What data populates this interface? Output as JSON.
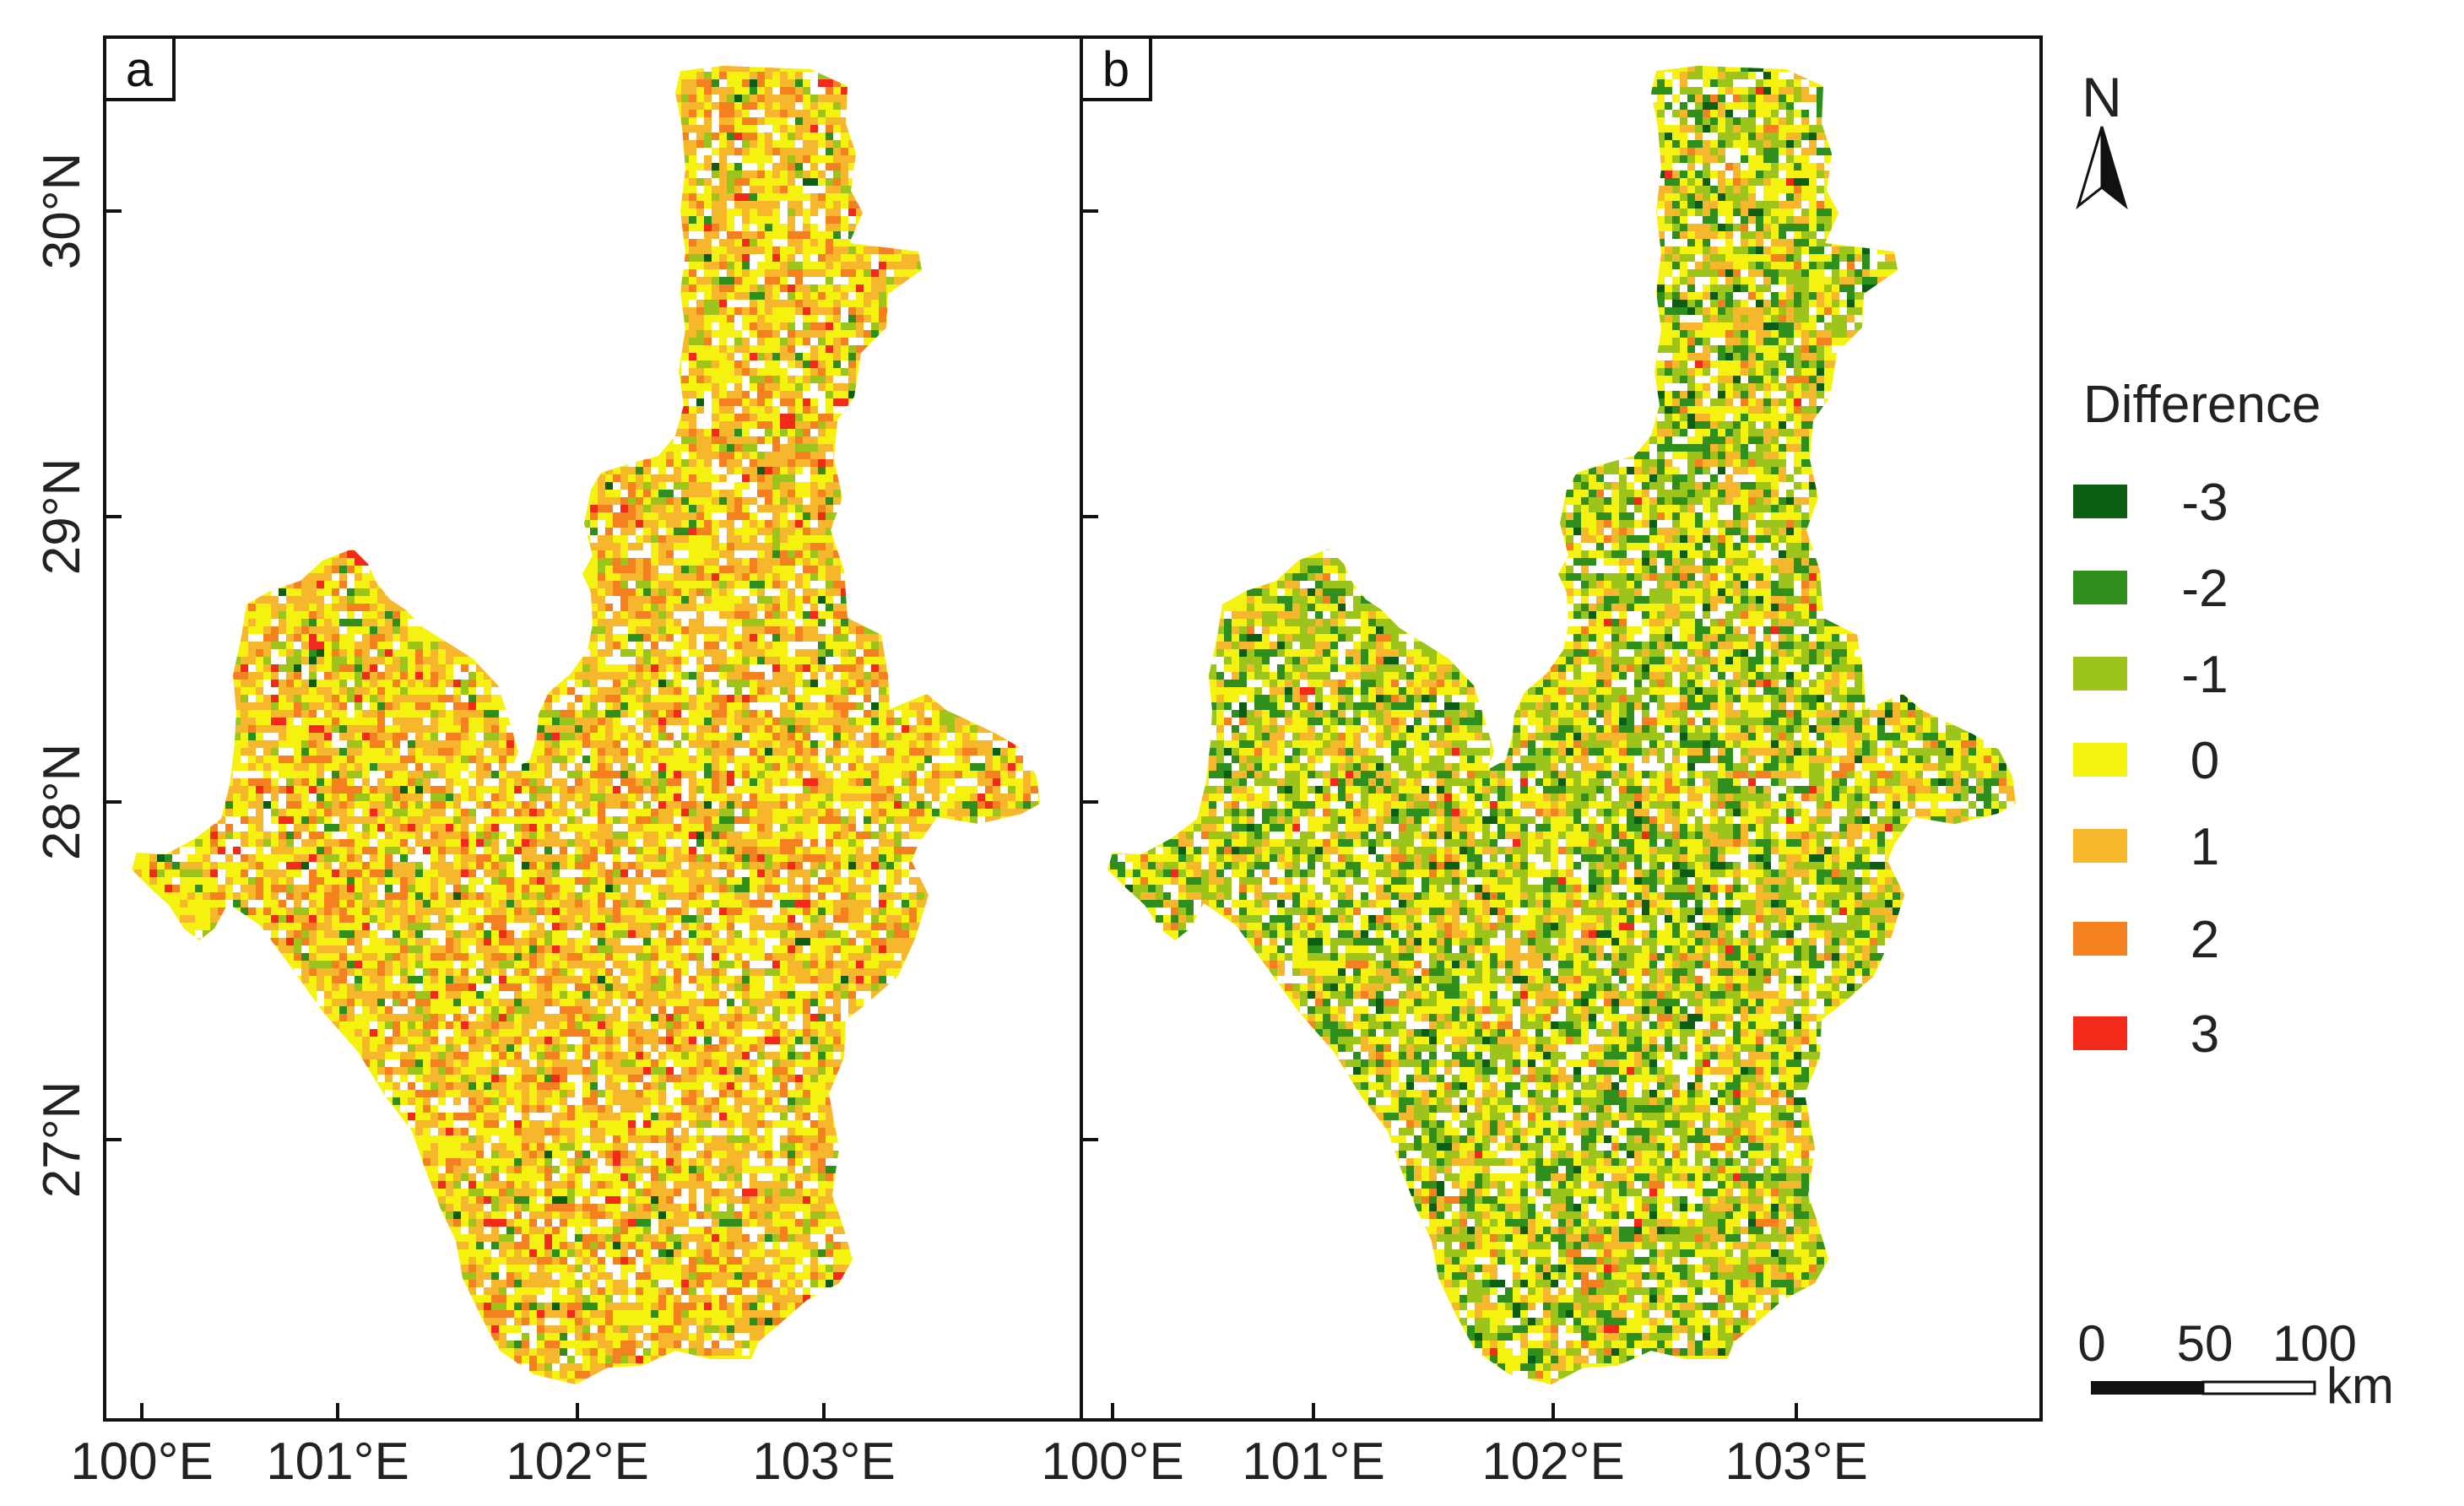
{
  "panels": [
    {
      "letter": "a",
      "color_bias": "positive"
    },
    {
      "letter": "b",
      "color_bias": "negative"
    }
  ],
  "axes": {
    "x_ticks": [
      "100°E",
      "101°E",
      "102°E",
      "103°E"
    ],
    "y_ticks": [
      "30°N",
      "29°N",
      "28°N",
      "27°N"
    ]
  },
  "north_arrow": {
    "label": "N"
  },
  "legend": {
    "title": "Difference",
    "items": [
      {
        "label": "-3",
        "color": "#0b5e14"
      },
      {
        "label": "-2",
        "color": "#2f8f1c"
      },
      {
        "label": "-1",
        "color": "#9cc41a"
      },
      {
        "label": "0",
        "color": "#f4f20e"
      },
      {
        "label": "1",
        "color": "#f7b72c"
      },
      {
        "label": "2",
        "color": "#f5801f"
      },
      {
        "label": "3",
        "color": "#f32a1a"
      }
    ]
  },
  "scale_bar": {
    "labels": [
      "0",
      "50",
      "100"
    ],
    "unit": "km"
  }
}
